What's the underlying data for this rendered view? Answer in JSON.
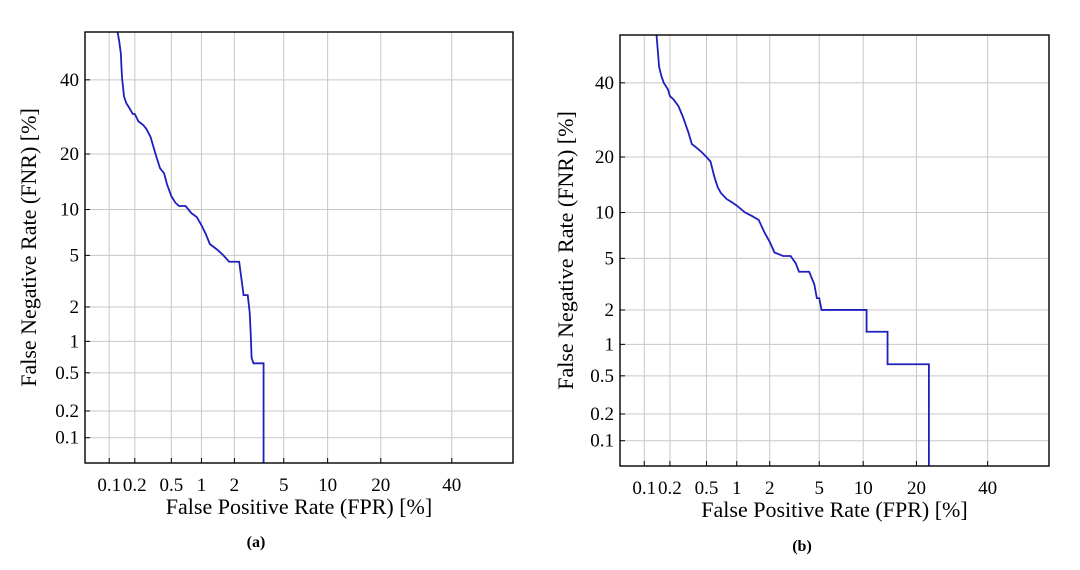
{
  "chart_data": [
    {
      "type": "line",
      "panel": "(a)",
      "xlabel": "False Positive Rate (FPR) [%]",
      "ylabel": "False Negative Rate (FNR) [%]",
      "xscale": "probit",
      "yscale": "probit",
      "xlim": [
        0.05,
        60
      ],
      "ylim": [
        0.05,
        55
      ],
      "xticks": [
        0.1,
        0.2,
        0.5,
        1,
        2,
        5,
        10,
        20,
        40
      ],
      "xtick_labels": [
        "0.1",
        "0.2",
        "0.5",
        "1",
        "2",
        "5",
        "10",
        "20",
        "40"
      ],
      "yticks": [
        0.1,
        0.2,
        0.5,
        1,
        2,
        5,
        10,
        20,
        40
      ],
      "ytick_labels": [
        "0.1",
        "0.2",
        "0.5",
        "1",
        "2",
        "5",
        "10",
        "20",
        "40"
      ],
      "grid": true,
      "series": [
        {
          "color": "#1f1fbf",
          "x": [
            0.126,
            0.132,
            0.138,
            0.14,
            0.143,
            0.146,
            0.15,
            0.16,
            0.17,
            0.19,
            0.2,
            0.22,
            0.25,
            0.27,
            0.3,
            0.34,
            0.38,
            0.42,
            0.45,
            0.5,
            0.55,
            0.6,
            0.7,
            0.8,
            0.9,
            1.0,
            1.1,
            1.2,
            1.4,
            1.6,
            1.8,
            2.2,
            2.4,
            2.6,
            2.7,
            2.75,
            2.8,
            2.9,
            3.5,
            3.5
          ],
          "y": [
            55,
            52,
            48,
            44,
            40,
            38,
            35,
            33,
            32,
            30,
            30,
            28,
            27,
            26,
            24,
            20,
            17,
            16,
            14,
            12,
            11,
            10.5,
            10.5,
            9.5,
            9,
            8,
            7,
            6,
            5.5,
            5,
            4.5,
            4.5,
            2.5,
            2.5,
            1.8,
            1.2,
            0.7,
            0.62,
            0.62,
            0.05
          ]
        }
      ]
    },
    {
      "type": "line",
      "panel": "(b)",
      "xlabel": "False Positive Rate (FPR) [%]",
      "ylabel": "False Negative Rate (FNR) [%]",
      "xscale": "probit",
      "yscale": "probit",
      "xlim": [
        0.05,
        60
      ],
      "ylim": [
        0.05,
        55
      ],
      "xticks": [
        0.1,
        0.2,
        0.5,
        1,
        2,
        5,
        10,
        20,
        40
      ],
      "xtick_labels": [
        "0.1",
        "0.2",
        "0.5",
        "1",
        "2",
        "5",
        "10",
        "20",
        "40"
      ],
      "yticks": [
        0.1,
        0.2,
        0.5,
        1,
        2,
        5,
        10,
        20,
        40
      ],
      "ytick_labels": [
        "0.1",
        "0.2",
        "0.5",
        "1",
        "2",
        "5",
        "10",
        "20",
        "40"
      ],
      "grid": true,
      "series": [
        {
          "color": "#1f1fbf",
          "x": [
            0.14,
            0.145,
            0.15,
            0.16,
            0.17,
            0.19,
            0.2,
            0.22,
            0.25,
            0.28,
            0.32,
            0.35,
            0.4,
            0.45,
            0.5,
            0.55,
            0.6,
            0.65,
            0.7,
            0.8,
            0.9,
            1.0,
            1.2,
            1.4,
            1.6,
            1.8,
            2.0,
            2.2,
            2.6,
            3.0,
            3.3,
            3.5,
            4.2,
            4.6,
            4.8,
            5.0,
            5.2,
            10.5,
            10.5,
            14,
            14,
            23,
            23
          ],
          "y": [
            55,
            50,
            45,
            42,
            40,
            38,
            36,
            35,
            33,
            30,
            26,
            23,
            22,
            21,
            20,
            19,
            16,
            14,
            13,
            12,
            11.5,
            11,
            10,
            9.5,
            9,
            7.5,
            6.5,
            5.5,
            5.2,
            5.2,
            4.6,
            4.0,
            4.0,
            3.2,
            2.5,
            2.5,
            2.0,
            2.0,
            1.3,
            1.3,
            0.65,
            0.65,
            0.05
          ]
        }
      ]
    }
  ]
}
